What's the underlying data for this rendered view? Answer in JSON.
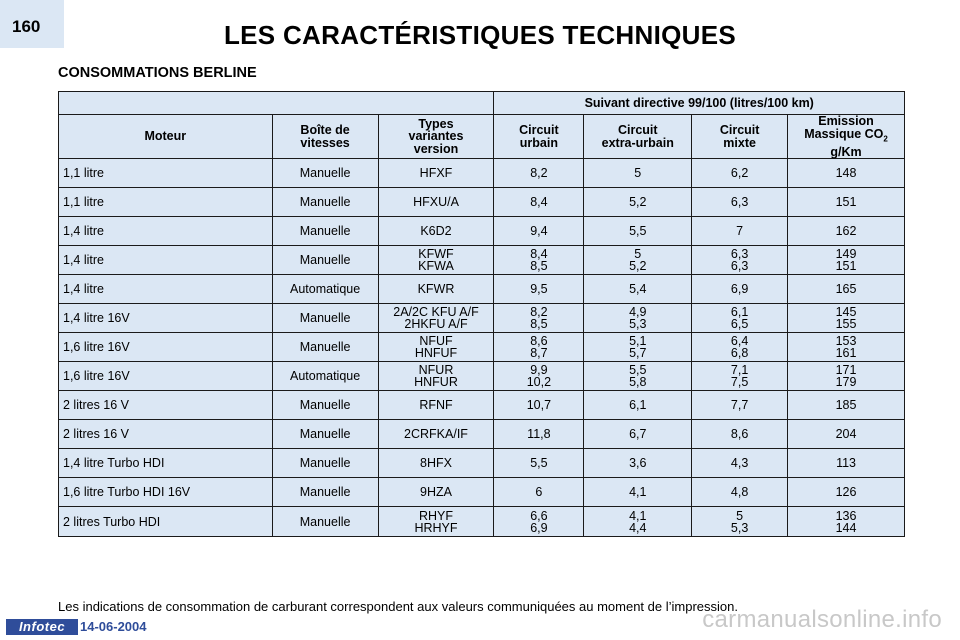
{
  "page_number": "160",
  "title": "LES CARACTÉRISTIQUES TECHNIQUES",
  "section_title": "CONSOMMATIONS BERLINE",
  "table": {
    "band_label": "Suivant directive 99/100 (litres/100 km)",
    "headers": {
      "moteur": "Moteur",
      "boite": "Boîte de\nvitesses",
      "types": "Types\nvariantes\nversion",
      "urbain": "Circuit\nurbain",
      "extra": "Circuit\nextra-urbain",
      "mixte": "Circuit\nmixte",
      "emission_main": "Emission\nMassique CO",
      "emission_sub": "2",
      "emission_unit": "g/Km"
    },
    "rows": [
      {
        "moteur": "1,1 litre",
        "boite": "Manuelle",
        "types": "HFXF",
        "urbain": "8,2",
        "extra": "5",
        "mixte": "6,2",
        "co2": "148"
      },
      {
        "moteur": "1,1 litre",
        "boite": "Manuelle",
        "types": "HFXU/A",
        "urbain": "8,4",
        "extra": "5,2",
        "mixte": "6,3",
        "co2": "151"
      },
      {
        "moteur": "1,4 litre",
        "boite": "Manuelle",
        "types": "K6D2",
        "urbain": "9,4",
        "extra": "5,5",
        "mixte": "7",
        "co2": "162"
      },
      {
        "moteur": "1,4 litre",
        "boite": "Manuelle",
        "types": "KFWF\nKFWA",
        "urbain": "8,4\n8,5",
        "extra": "5\n5,2",
        "mixte": "6,3\n6,3",
        "co2": "149\n151"
      },
      {
        "moteur": "1,4 litre",
        "boite": "Automatique",
        "types": "KFWR",
        "urbain": "9,5",
        "extra": "5,4",
        "mixte": "6,9",
        "co2": "165"
      },
      {
        "moteur": "1,4 litre 16V",
        "boite": "Manuelle",
        "types": "2A/2C KFU A/F\n2HKFU A/F",
        "urbain": "8,2\n8,5",
        "extra": "4,9\n5,3",
        "mixte": "6,1\n6,5",
        "co2": "145\n155"
      },
      {
        "moteur": "1,6 litre 16V",
        "boite": "Manuelle",
        "types": "NFUF\nHNFUF",
        "urbain": "8,6\n8,7",
        "extra": "5,1\n5,7",
        "mixte": "6,4\n6,8",
        "co2": "153\n161"
      },
      {
        "moteur": "1,6 litre 16V",
        "boite": "Automatique",
        "types": "NFUR\nHNFUR",
        "urbain": "9,9\n10,2",
        "extra": "5,5\n5,8",
        "mixte": "7,1\n7,5",
        "co2": "171\n179"
      },
      {
        "moteur": "2 litres 16 V",
        "boite": "Manuelle",
        "types": "RFNF",
        "urbain": "10,7",
        "extra": "6,1",
        "mixte": "7,7",
        "co2": "185"
      },
      {
        "moteur": "2 litres 16 V",
        "boite": "Manuelle",
        "types": "2CRFKA/IF",
        "urbain": "11,8",
        "extra": "6,7",
        "mixte": "8,6",
        "co2": "204"
      },
      {
        "moteur": "1,4 litre Turbo HDI",
        "boite": "Manuelle",
        "types": "8HFX",
        "urbain": "5,5",
        "extra": "3,6",
        "mixte": "4,3",
        "co2": "113"
      },
      {
        "moteur": "1,6 litre Turbo HDI 16V",
        "boite": "Manuelle",
        "types": "9HZA",
        "urbain": "6",
        "extra": "4,1",
        "mixte": "4,8",
        "co2": "126"
      },
      {
        "moteur": "2 litres Turbo HDI",
        "boite": "Manuelle",
        "types": "RHYF\nHRHYF",
        "urbain": "6,6\n6,9",
        "extra": "4,1\n4,4",
        "mixte": "5\n5,3",
        "co2": "136\n144"
      }
    ]
  },
  "footnote": "Les indications de consommation de carburant correspondent aux valeurs communiquées au moment de l’impression.",
  "footer": {
    "brand": "Infotec",
    "date": "14-06-2004",
    "watermark": "carmanualsonline.info"
  }
}
